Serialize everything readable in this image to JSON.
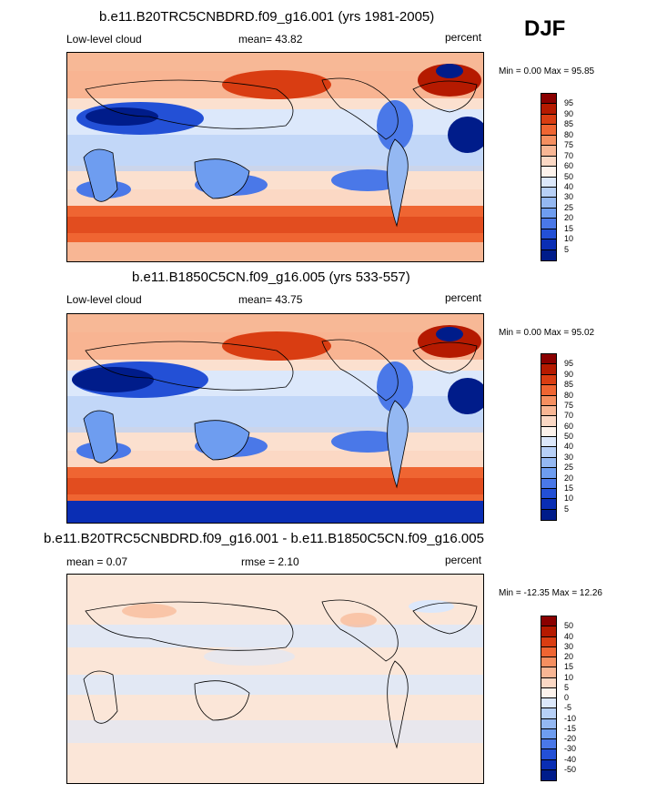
{
  "season": "DJF",
  "panels": [
    {
      "title": "b.e11.B20TRC5CNBDRD.f09_g16.001 (yrs 1981-2005)",
      "left": "Low-level cloud",
      "center": "mean=  43.82",
      "right": "percent",
      "minmax": "Min =   0.00 Max =  95.85"
    },
    {
      "title": "b.e11.B1850C5CN.f09_g16.005 (yrs 533-557)",
      "left": "Low-level cloud",
      "center": "mean=  43.75",
      "right": "percent",
      "minmax": "Min =   0.00 Max =  95.02"
    },
    {
      "title": "b.e11.B20TRC5CNBDRD.f09_g16.001 - b.e11.B1850C5CN.f09_g16.005",
      "left": "mean =   0.07",
      "center": "rmse =   2.10",
      "right": "percent",
      "minmax": "Min = -12.35 Max =  12.26"
    }
  ],
  "colorbar_abs": {
    "labels": [
      "95",
      "90",
      "85",
      "80",
      "75",
      "70",
      "60",
      "50",
      "40",
      "30",
      "25",
      "20",
      "15",
      "10",
      "5"
    ],
    "colors": [
      "#8a0000",
      "#b51a00",
      "#d93d12",
      "#ef6532",
      "#f58f60",
      "#f8b694",
      "#fbd8c4",
      "#fdf3ec",
      "#dce8fb",
      "#b7d0f7",
      "#94b8f2",
      "#6e9df0",
      "#4a78e8",
      "#2350d6",
      "#0a2eb4",
      "#001c8a"
    ]
  },
  "colorbar_diff": {
    "labels": [
      "50",
      "40",
      "30",
      "20",
      "15",
      "10",
      "5",
      "0",
      "-5",
      "-10",
      "-15",
      "-20",
      "-30",
      "-40",
      "-50"
    ],
    "colors": [
      "#8a0000",
      "#b51a00",
      "#d93d12",
      "#ef6532",
      "#f58f60",
      "#f8b694",
      "#fbd8c4",
      "#fdf3ec",
      "#dce8fb",
      "#b7d0f7",
      "#94b8f2",
      "#6e9df0",
      "#4a78e8",
      "#2350d6",
      "#0a2eb4",
      "#001c8a"
    ]
  }
}
